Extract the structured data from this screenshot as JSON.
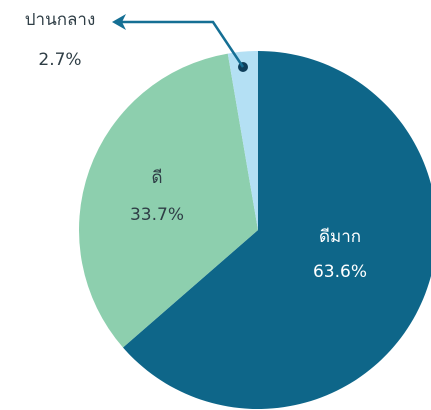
{
  "chart_data": {
    "type": "pie",
    "categories": [
      "ดีมาก",
      "ดี",
      "ปานกลาง"
    ],
    "values": [
      63.6,
      33.7,
      2.7
    ],
    "value_labels": [
      "63.6%",
      "33.7%",
      "2.7%"
    ],
    "colors": [
      "#0e6689",
      "#8dcfae",
      "#b4e0f4"
    ]
  }
}
